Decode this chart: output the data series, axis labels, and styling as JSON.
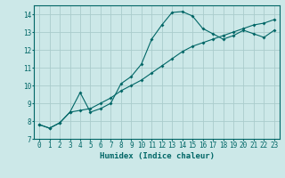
{
  "xlabel": "Humidex (Indice chaleur)",
  "background_color": "#cce8e8",
  "grid_color": "#aacccc",
  "line_color": "#006666",
  "xlim": [
    -0.5,
    23.5
  ],
  "ylim": [
    7,
    14.5
  ],
  "yticks": [
    7,
    8,
    9,
    10,
    11,
    12,
    13,
    14
  ],
  "xticks": [
    0,
    1,
    2,
    3,
    4,
    5,
    6,
    7,
    8,
    9,
    10,
    11,
    12,
    13,
    14,
    15,
    16,
    17,
    18,
    19,
    20,
    21,
    22,
    23
  ],
  "curve1_x": [
    0,
    1,
    2,
    3,
    4,
    5,
    6,
    7,
    8,
    9,
    10,
    11,
    12,
    13,
    14,
    15,
    16,
    17,
    18,
    19,
    20,
    21,
    22,
    23
  ],
  "curve1_y": [
    7.8,
    7.6,
    7.9,
    8.5,
    9.6,
    8.5,
    8.7,
    9.0,
    10.1,
    10.5,
    11.2,
    12.6,
    13.4,
    14.1,
    14.15,
    13.9,
    13.2,
    12.9,
    12.6,
    12.8,
    13.1,
    12.9,
    12.7,
    13.1
  ],
  "curve2_x": [
    0,
    1,
    2,
    3,
    4,
    5,
    6,
    7,
    8,
    9,
    10,
    11,
    12,
    13,
    14,
    15,
    16,
    17,
    18,
    19,
    20,
    21,
    22,
    23
  ],
  "curve2_y": [
    7.8,
    7.6,
    7.9,
    8.5,
    8.6,
    8.7,
    9.0,
    9.3,
    9.7,
    10.0,
    10.3,
    10.7,
    11.1,
    11.5,
    11.9,
    12.2,
    12.4,
    12.6,
    12.8,
    13.0,
    13.2,
    13.4,
    13.5,
    13.7
  ]
}
